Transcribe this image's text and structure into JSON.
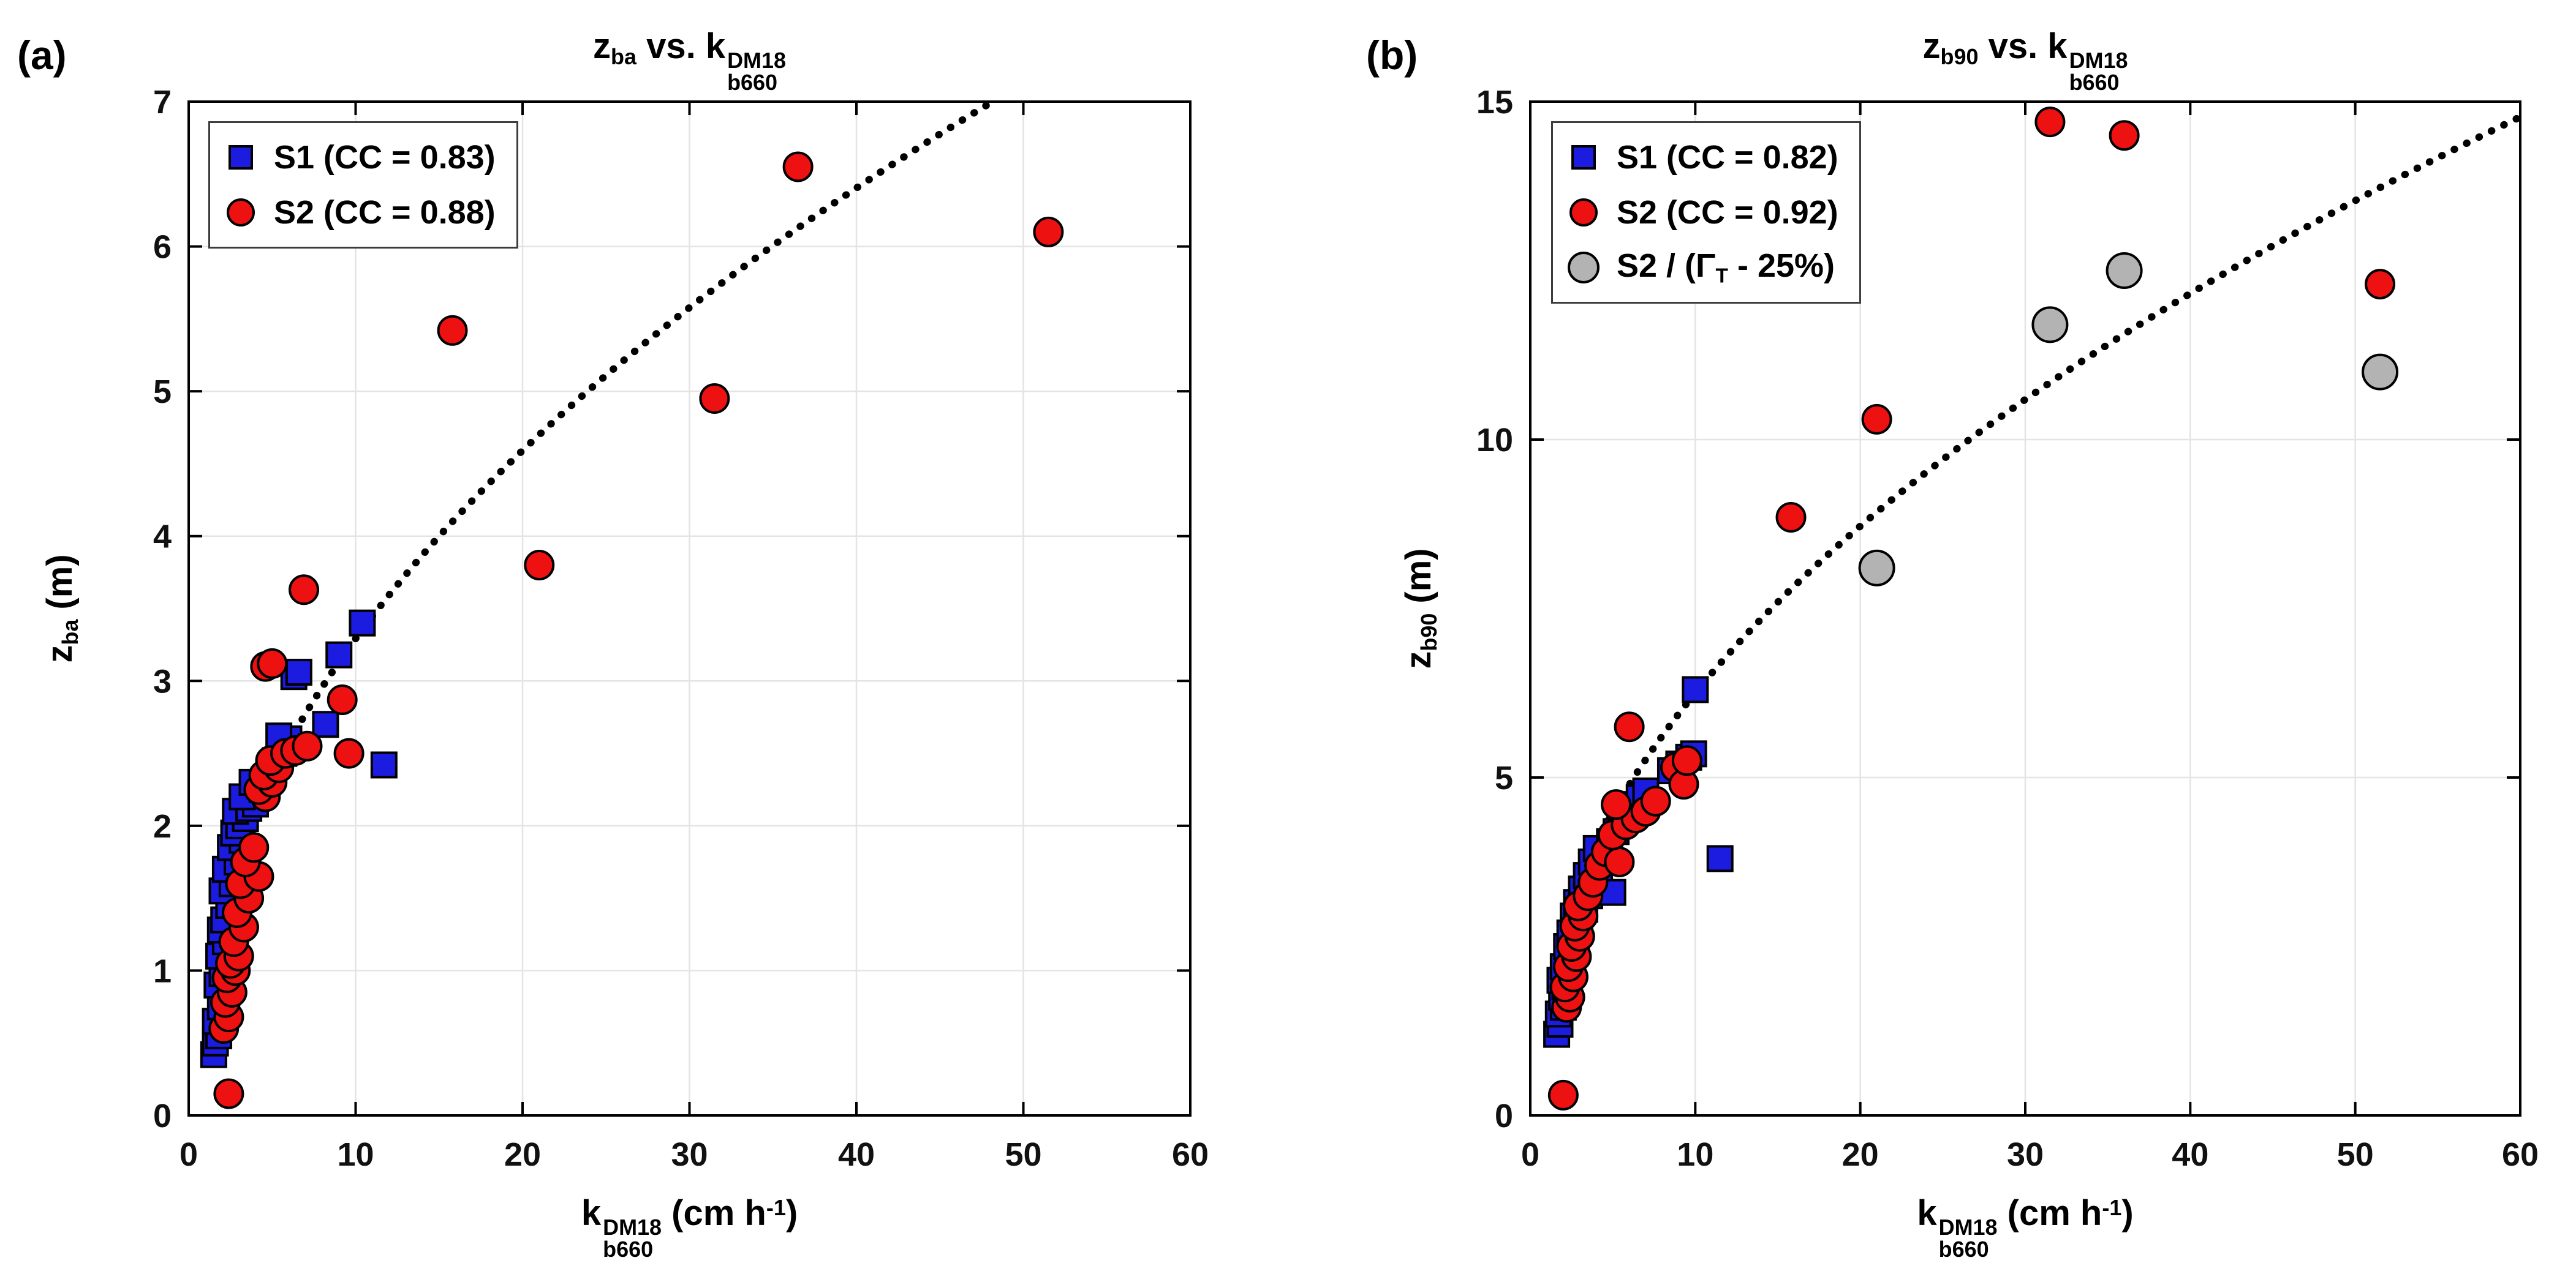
{
  "figure": {
    "background": "#ffffff",
    "panels": [
      {
        "tag": "(a)",
        "title_parts": {
          "z": "z",
          "z_sub": "ba",
          "mid": " vs. k",
          "k_sup": "DM18",
          "k_sub": "b660"
        },
        "ylabel_parts": {
          "base": "z",
          "sub": "ba",
          "unit": " (m)"
        },
        "xlabel_parts": {
          "base": "k",
          "sup": "DM18",
          "sub": "b660",
          "unit_pre": " (cm h",
          "unit_sup": "-1",
          "unit_post": ")"
        },
        "legend": [
          {
            "shape": "square",
            "label": "S1 (CC = 0.83)"
          },
          {
            "shape": "circle",
            "label": "S2 (CC = 0.88)"
          }
        ]
      },
      {
        "tag": "(b)",
        "title_parts": {
          "z": "z",
          "z_sub": "b90",
          "mid": " vs. k",
          "k_sup": "DM18",
          "k_sub": "b660"
        },
        "ylabel_parts": {
          "base": "z",
          "sub": "b90",
          "unit": " (m)"
        },
        "xlabel_parts": {
          "base": "k",
          "sup": "DM18",
          "sub": "b660",
          "unit_pre": " (cm h",
          "unit_sup": "-1",
          "unit_post": ")"
        },
        "legend": [
          {
            "shape": "square",
            "label": "S1 (CC = 0.82)"
          },
          {
            "shape": "circle",
            "label": "S2 (CC = 0.92)"
          },
          {
            "shape": "circle-lg",
            "label_pre": "S2 / (Γ",
            "label_sub": "T",
            "label_post": " - 25%)"
          }
        ]
      }
    ]
  },
  "chart_data": [
    {
      "type": "scatter",
      "title": "z_ba vs. k_b660^DM18",
      "xlabel": "k_b660^DM18 (cm h^-1)",
      "ylabel": "z_ba (m)",
      "xlim": [
        0,
        60
      ],
      "ylim": [
        0,
        7
      ],
      "xticks": [
        0,
        10,
        20,
        30,
        40,
        50,
        60
      ],
      "yticks": [
        0,
        1,
        2,
        3,
        4,
        5,
        6,
        7
      ],
      "grid": true,
      "grid_color": "#e4e4e4",
      "legend_position": "top-left",
      "trend": {
        "style": "dotted",
        "color": "#000000",
        "formula": "y = 1.09*x^0.48",
        "a": 1.09,
        "b": 0.48,
        "x_start": 2.0,
        "x_end": 60
      },
      "series": [
        {
          "id": "s1",
          "name": "S1 (CC = 0.83)",
          "marker": "square",
          "color": "#1c1ce0",
          "size": 40,
          "points": [
            [
              1.5,
              0.42
            ],
            [
              1.6,
              0.5
            ],
            [
              1.8,
              0.55
            ],
            [
              1.6,
              0.65
            ],
            [
              1.9,
              0.75
            ],
            [
              1.7,
              0.9
            ],
            [
              2.0,
              0.98
            ],
            [
              1.8,
              1.1
            ],
            [
              2.2,
              1.2
            ],
            [
              1.9,
              1.28
            ],
            [
              2.1,
              1.35
            ],
            [
              2.4,
              1.45
            ],
            [
              2.0,
              1.55
            ],
            [
              2.6,
              1.6
            ],
            [
              2.2,
              1.7
            ],
            [
              2.9,
              1.75
            ],
            [
              2.5,
              1.85
            ],
            [
              3.2,
              1.9
            ],
            [
              2.7,
              1.95
            ],
            [
              3.0,
              2.0
            ],
            [
              3.4,
              2.05
            ],
            [
              2.8,
              2.1
            ],
            [
              3.6,
              2.12
            ],
            [
              4.0,
              2.15
            ],
            [
              3.2,
              2.2
            ],
            [
              4.4,
              2.25
            ],
            [
              3.8,
              2.3
            ],
            [
              4.8,
              2.35
            ],
            [
              5.2,
              2.45
            ],
            [
              5.7,
              2.5
            ],
            [
              11.7,
              2.42
            ],
            [
              6.0,
              2.6
            ],
            [
              5.4,
              2.62
            ],
            [
              8.2,
              2.7
            ],
            [
              6.3,
              3.03
            ],
            [
              6.6,
              3.06
            ],
            [
              9.0,
              3.18
            ],
            [
              10.4,
              3.4
            ]
          ]
        },
        {
          "id": "s2",
          "name": "S2 (CC = 0.88)",
          "marker": "circle",
          "color": "#ee1111",
          "size": 23,
          "points": [
            [
              2.4,
              0.15
            ],
            [
              2.1,
              0.6
            ],
            [
              2.4,
              0.68
            ],
            [
              2.2,
              0.78
            ],
            [
              2.6,
              0.85
            ],
            [
              2.3,
              0.95
            ],
            [
              2.8,
              1.0
            ],
            [
              2.5,
              1.05
            ],
            [
              3.0,
              1.1
            ],
            [
              2.7,
              1.2
            ],
            [
              3.3,
              1.3
            ],
            [
              2.9,
              1.4
            ],
            [
              3.6,
              1.5
            ],
            [
              3.1,
              1.6
            ],
            [
              4.2,
              1.65
            ],
            [
              3.4,
              1.75
            ],
            [
              3.9,
              1.85
            ],
            [
              4.6,
              2.2
            ],
            [
              4.2,
              2.25
            ],
            [
              5.0,
              2.3
            ],
            [
              4.5,
              2.35
            ],
            [
              5.4,
              2.4
            ],
            [
              4.9,
              2.45
            ],
            [
              5.8,
              2.5
            ],
            [
              6.4,
              2.52
            ],
            [
              7.1,
              2.55
            ],
            [
              9.6,
              2.5
            ],
            [
              9.2,
              2.87
            ],
            [
              4.6,
              3.1
            ],
            [
              5.0,
              3.12
            ],
            [
              6.9,
              3.63
            ],
            [
              15.8,
              5.42
            ],
            [
              21.0,
              3.8
            ],
            [
              31.5,
              4.95
            ],
            [
              36.5,
              6.55
            ],
            [
              51.5,
              6.1
            ]
          ]
        }
      ]
    },
    {
      "type": "scatter",
      "title": "z_b90 vs. k_b660^DM18",
      "xlabel": "k_b660^DM18 (cm h^-1)",
      "ylabel": "z_b90 (m)",
      "xlim": [
        0,
        60
      ],
      "ylim": [
        0,
        15
      ],
      "xticks": [
        0,
        10,
        20,
        30,
        40,
        50,
        60
      ],
      "yticks": [
        0,
        5,
        10,
        15
      ],
      "grid": true,
      "grid_color": "#e4e4e4",
      "legend_position": "top-left",
      "trend": {
        "style": "dotted",
        "color": "#000000",
        "formula": "y = 2.07*x^0.48",
        "a": 2.07,
        "b": 0.48,
        "x_start": 2.0,
        "x_end": 60
      },
      "series": [
        {
          "id": "s1",
          "name": "S1 (CC = 0.82)",
          "marker": "square",
          "color": "#1c1ce0",
          "size": 40,
          "points": [
            [
              1.6,
              1.2
            ],
            [
              1.8,
              1.35
            ],
            [
              1.7,
              1.5
            ],
            [
              2.0,
              1.6
            ],
            [
              1.9,
              1.75
            ],
            [
              2.1,
              1.9
            ],
            [
              1.8,
              2.0
            ],
            [
              2.3,
              2.1
            ],
            [
              2.0,
              2.2
            ],
            [
              2.5,
              2.35
            ],
            [
              2.2,
              2.5
            ],
            [
              2.8,
              2.6
            ],
            [
              2.4,
              2.7
            ],
            [
              3.0,
              2.8
            ],
            [
              2.6,
              2.95
            ],
            [
              3.3,
              3.05
            ],
            [
              2.8,
              3.15
            ],
            [
              3.6,
              3.25
            ],
            [
              3.1,
              3.35
            ],
            [
              3.9,
              3.45
            ],
            [
              3.4,
              3.55
            ],
            [
              4.2,
              3.65
            ],
            [
              3.7,
              3.75
            ],
            [
              4.5,
              3.85
            ],
            [
              4.0,
              3.95
            ],
            [
              4.8,
              4.05
            ],
            [
              5.0,
              3.3
            ],
            [
              5.2,
              4.2
            ],
            [
              5.6,
              4.35
            ],
            [
              6.2,
              4.6
            ],
            [
              6.6,
              4.7
            ],
            [
              7.0,
              4.8
            ],
            [
              11.5,
              3.8
            ],
            [
              8.5,
              5.1
            ],
            [
              9.0,
              5.2
            ],
            [
              9.6,
              5.3
            ],
            [
              9.9,
              5.35
            ],
            [
              10.0,
              6.3
            ]
          ]
        },
        {
          "id": "s2",
          "name": "S2 (CC = 0.92)",
          "marker": "circle",
          "color": "#ee1111",
          "size": 23,
          "points": [
            [
              2.0,
              0.3
            ],
            [
              2.2,
              1.6
            ],
            [
              2.4,
              1.75
            ],
            [
              2.1,
              1.9
            ],
            [
              2.6,
              2.05
            ],
            [
              2.3,
              2.2
            ],
            [
              2.8,
              2.35
            ],
            [
              2.5,
              2.5
            ],
            [
              3.0,
              2.65
            ],
            [
              2.7,
              2.8
            ],
            [
              3.2,
              2.95
            ],
            [
              2.9,
              3.1
            ],
            [
              3.5,
              3.25
            ],
            [
              3.8,
              3.45
            ],
            [
              4.2,
              3.7
            ],
            [
              4.6,
              3.9
            ],
            [
              5.4,
              3.75
            ],
            [
              5.0,
              4.15
            ],
            [
              5.8,
              4.3
            ],
            [
              6.4,
              4.4
            ],
            [
              7.0,
              4.5
            ],
            [
              7.6,
              4.65
            ],
            [
              8.8,
              5.15
            ],
            [
              9.3,
              4.9
            ],
            [
              9.5,
              5.25
            ],
            [
              5.2,
              4.6
            ],
            [
              6.0,
              5.75
            ],
            [
              15.8,
              8.85
            ],
            [
              21.0,
              10.3
            ],
            [
              31.5,
              14.7
            ],
            [
              36.0,
              14.5
            ],
            [
              51.5,
              12.3
            ]
          ]
        },
        {
          "id": "s2adj",
          "name": "S2 / (Gamma_T - 25%)",
          "marker": "circle",
          "color": "#b3b3b3",
          "size": 28,
          "points": [
            [
              21.0,
              8.1
            ],
            [
              31.5,
              11.7
            ],
            [
              36.0,
              12.5
            ],
            [
              51.5,
              11.0
            ]
          ]
        }
      ]
    }
  ]
}
